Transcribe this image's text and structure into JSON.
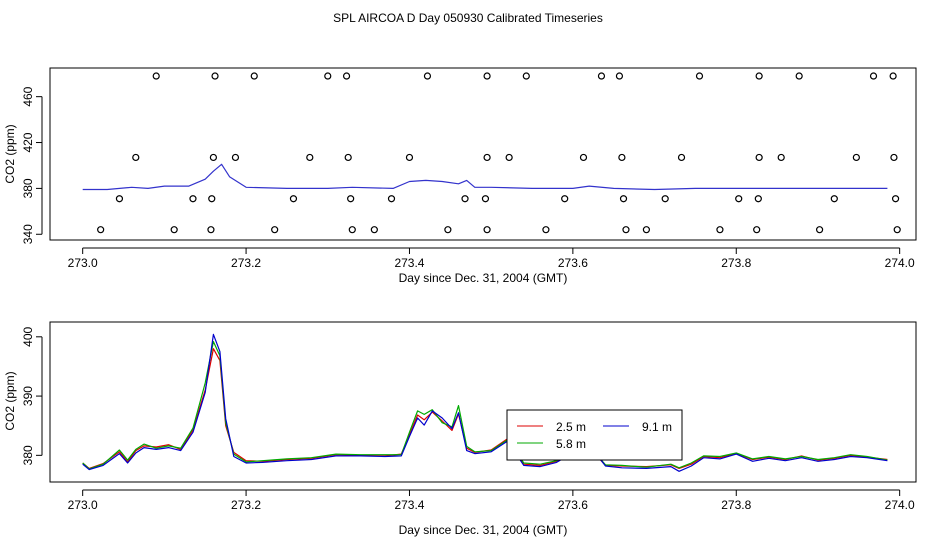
{
  "title": "SPL AIRCOA D  Day 050930  Calibrated Timeseries",
  "chart_data": [
    {
      "type": "line",
      "panel": "top",
      "xlabel": "Day since Dec. 31, 2004 (GMT)",
      "ylabel": "CO2 (ppm)",
      "xlim": [
        272.96,
        274.02
      ],
      "ylim": [
        335,
        485
      ],
      "xticks": [
        "273.0",
        "273.2",
        "273.4",
        "273.6",
        "273.8",
        "274.0"
      ],
      "yticks": [
        "340",
        "380",
        "420",
        "460"
      ],
      "legend": "none",
      "series": [
        {
          "color": "#3333cc",
          "x": [
            273.0,
            273.03,
            273.06,
            273.08,
            273.1,
            273.13,
            273.15,
            273.16,
            273.17,
            273.18,
            273.2,
            273.25,
            273.3,
            273.33,
            273.38,
            273.4,
            273.42,
            273.44,
            273.46,
            273.47,
            273.48,
            273.5,
            273.55,
            273.6,
            273.62,
            273.65,
            273.7,
            273.75,
            273.8,
            273.85,
            273.9,
            273.95,
            273.985
          ],
          "y": [
            379,
            379,
            381,
            380,
            382,
            382,
            388,
            395,
            401,
            390,
            381,
            380,
            380,
            381,
            380,
            386,
            387,
            386,
            384,
            387,
            381,
            381,
            380,
            380,
            382,
            380,
            379,
            380,
            380,
            380,
            380,
            380,
            380
          ]
        }
      ],
      "calibration_points": {
        "x": [
          273.09,
          273.162,
          273.21,
          273.3,
          273.323,
          273.422,
          273.495,
          273.543,
          273.635,
          273.657,
          273.755,
          273.828,
          273.877,
          273.968,
          273.992,
          273.065,
          273.16,
          273.187,
          273.278,
          273.325,
          273.4,
          273.495,
          273.522,
          273.613,
          273.66,
          273.733,
          273.828,
          273.855,
          273.947,
          273.993,
          273.045,
          273.135,
          273.158,
          273.258,
          273.328,
          273.378,
          273.468,
          273.493,
          273.59,
          273.662,
          273.713,
          273.803,
          273.827,
          273.92,
          273.995,
          273.022,
          273.112,
          273.157,
          273.235,
          273.33,
          273.357,
          273.447,
          273.495,
          273.567,
          273.665,
          273.69,
          273.78,
          273.825,
          273.902,
          273.997
        ],
        "y": [
          478,
          478,
          478,
          478,
          478,
          478,
          478,
          478,
          478,
          478,
          478,
          478,
          478,
          478,
          478,
          407,
          407,
          407,
          407,
          407,
          407,
          407,
          407,
          407,
          407,
          407,
          407,
          407,
          407,
          407,
          371,
          371,
          371,
          371,
          371,
          371,
          371,
          371,
          371,
          371,
          371,
          371,
          371,
          371,
          371,
          344,
          344,
          344,
          344,
          344,
          344,
          344,
          344,
          344,
          344,
          344,
          344,
          344,
          344,
          344
        ]
      }
    },
    {
      "type": "line",
      "panel": "bottom",
      "xlabel": "Day since Dec. 31, 2004 (GMT)",
      "ylabel": "CO2 (ppm)",
      "xlim": [
        272.96,
        274.02
      ],
      "ylim": [
        375.5,
        402.5
      ],
      "xticks": [
        "273.0",
        "273.2",
        "273.4",
        "273.6",
        "273.8",
        "274.0"
      ],
      "yticks": [
        "380",
        "390",
        "400"
      ],
      "legend": "inside-center-right",
      "series": [
        {
          "name": "2.5 m",
          "color": "#dd0000",
          "x": [
            273.0,
            273.008,
            273.025,
            273.045,
            273.055,
            273.065,
            273.075,
            273.09,
            273.105,
            273.12,
            273.135,
            273.15,
            273.16,
            273.168,
            273.175,
            273.185,
            273.2,
            273.22,
            273.25,
            273.28,
            273.31,
            273.34,
            273.37,
            273.39,
            273.4,
            273.41,
            273.418,
            273.428,
            273.44,
            273.452,
            273.46,
            273.47,
            273.48,
            273.5,
            273.52,
            273.54,
            273.56,
            273.58,
            273.595,
            273.605,
            273.615,
            273.625,
            273.64,
            273.66,
            273.69,
            273.72,
            273.73,
            273.745,
            273.76,
            273.78,
            273.8,
            273.82,
            273.84,
            273.86,
            273.88,
            273.9,
            273.92,
            273.94,
            273.96,
            273.985
          ],
          "y": [
            378.7,
            377.8,
            378.6,
            380.6,
            378.9,
            380.8,
            381.6,
            381.4,
            381.8,
            381.0,
            384.3,
            391.0,
            398.0,
            396.0,
            385.0,
            380.5,
            379.1,
            379.0,
            379.3,
            379.5,
            380.1,
            380.0,
            379.9,
            380.2,
            383.5,
            386.8,
            386.0,
            387.3,
            385.8,
            384.2,
            387.0,
            381.2,
            380.5,
            380.9,
            382.8,
            378.5,
            378.3,
            379.0,
            380.2,
            381.8,
            379.8,
            380.5,
            378.3,
            378.2,
            378.1,
            378.4,
            377.8,
            378.5,
            379.8,
            379.6,
            380.3,
            379.3,
            379.7,
            379.3,
            379.9,
            379.2,
            379.5,
            380.0,
            379.7,
            379.3
          ]
        },
        {
          "name": "5.8 m",
          "color": "#00aa00",
          "x": [
            273.0,
            273.008,
            273.025,
            273.045,
            273.055,
            273.065,
            273.075,
            273.09,
            273.105,
            273.12,
            273.135,
            273.15,
            273.16,
            273.168,
            273.175,
            273.185,
            273.2,
            273.22,
            273.25,
            273.28,
            273.31,
            273.34,
            273.37,
            273.39,
            273.4,
            273.41,
            273.418,
            273.428,
            273.44,
            273.452,
            273.46,
            273.47,
            273.48,
            273.5,
            273.52,
            273.54,
            273.56,
            273.58,
            273.595,
            273.605,
            273.615,
            273.625,
            273.64,
            273.66,
            273.69,
            273.72,
            273.73,
            273.745,
            273.76,
            273.78,
            273.8,
            273.82,
            273.84,
            273.86,
            273.88,
            273.9,
            273.92,
            273.94,
            273.96,
            273.985
          ],
          "y": [
            378.7,
            377.7,
            378.5,
            380.9,
            379.2,
            381.0,
            381.9,
            381.2,
            381.6,
            381.2,
            384.6,
            392.2,
            399.2,
            396.8,
            385.5,
            380.2,
            378.9,
            379.1,
            379.4,
            379.6,
            380.2,
            380.1,
            380.1,
            380.1,
            383.9,
            387.5,
            386.9,
            387.7,
            385.5,
            384.8,
            388.4,
            381.5,
            380.6,
            380.8,
            382.6,
            378.7,
            378.5,
            379.1,
            380.4,
            381.9,
            380.0,
            380.7,
            378.4,
            378.3,
            378.0,
            378.5,
            377.9,
            378.7,
            379.9,
            379.8,
            380.4,
            379.4,
            379.8,
            379.4,
            379.8,
            379.3,
            379.6,
            380.1,
            379.8,
            379.2
          ]
        },
        {
          "name": "9.1 m",
          "color": "#0000cc",
          "x": [
            273.0,
            273.008,
            273.025,
            273.045,
            273.055,
            273.065,
            273.075,
            273.09,
            273.105,
            273.12,
            273.135,
            273.15,
            273.16,
            273.168,
            273.175,
            273.185,
            273.2,
            273.22,
            273.25,
            273.28,
            273.31,
            273.34,
            273.37,
            273.39,
            273.4,
            273.41,
            273.418,
            273.428,
            273.44,
            273.452,
            273.46,
            273.47,
            273.48,
            273.5,
            273.52,
            273.54,
            273.56,
            273.58,
            273.595,
            273.605,
            273.615,
            273.625,
            273.64,
            273.66,
            273.69,
            273.72,
            273.73,
            273.745,
            273.76,
            273.78,
            273.8,
            273.82,
            273.84,
            273.86,
            273.88,
            273.9,
            273.92,
            273.94,
            273.96,
            273.985
          ],
          "y": [
            378.5,
            377.6,
            378.3,
            380.3,
            378.7,
            380.4,
            381.3,
            381.0,
            381.3,
            380.8,
            383.9,
            390.6,
            400.4,
            397.5,
            386.2,
            379.8,
            378.7,
            378.8,
            379.1,
            379.3,
            379.9,
            379.9,
            379.8,
            379.9,
            383.2,
            386.3,
            385.1,
            387.5,
            386.3,
            384.5,
            387.2,
            380.8,
            380.3,
            380.6,
            382.4,
            378.3,
            378.1,
            378.8,
            380.0,
            382.2,
            379.5,
            380.9,
            378.2,
            377.9,
            377.8,
            378.1,
            377.3,
            378.2,
            379.6,
            379.4,
            380.2,
            379.0,
            379.5,
            379.1,
            379.6,
            379.0,
            379.3,
            379.8,
            379.6,
            379.1
          ]
        }
      ]
    }
  ]
}
